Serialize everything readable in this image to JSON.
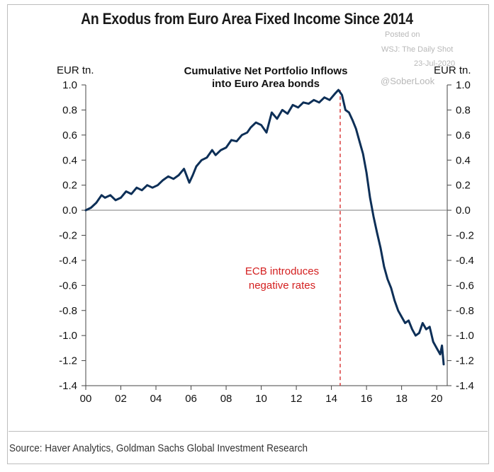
{
  "title": "An Exodus from Euro Area Fixed Income Since 2014",
  "source": "Source: Haver Analytics, Goldman Sachs Global Investment Research",
  "watermark": {
    "posted_on": "Posted on",
    "outlet": "WSJ: The Daily Shot",
    "date": "23-Jul-2020",
    "handle": "@SoberLook"
  },
  "colors": {
    "series": "#0d2f57",
    "annotation": "#d42020",
    "zero_line": "#8c8c8c",
    "axis": "#444444"
  },
  "chart_data": {
    "type": "line",
    "title": "Cumulative Net Portfolio Inflows into Euro Area bonds",
    "title_lines": [
      "Cumulative Net Portfolio Inflows",
      "into Euro Area bonds"
    ],
    "ylabel_left": "EUR tn.",
    "ylabel_right": "EUR tn.",
    "xlim": [
      2000,
      2020.6
    ],
    "ylim": [
      -1.4,
      1.0
    ],
    "xticks": [
      2000,
      2002,
      2004,
      2006,
      2008,
      2010,
      2012,
      2014,
      2016,
      2018,
      2020
    ],
    "xtick_labels": [
      "00",
      "02",
      "04",
      "06",
      "08",
      "10",
      "12",
      "14",
      "16",
      "18",
      "20"
    ],
    "yticks": [
      1.0,
      0.8,
      0.6,
      0.4,
      0.2,
      0.0,
      -0.2,
      -0.4,
      -0.6,
      -0.8,
      -1.0,
      -1.2,
      -1.4
    ],
    "ytick_labels": [
      "1.0",
      "0.8",
      "0.6",
      "0.4",
      "0.2",
      "0.0",
      "-0.2",
      "-0.4",
      "-0.6",
      "-0.8",
      "-1.0",
      "-1.2",
      "-1.4"
    ],
    "grid": false,
    "vline": {
      "x": 2014.5,
      "style": "dashed"
    },
    "annotation_lines": [
      "ECB introduces",
      "negative rates"
    ],
    "series": [
      {
        "name": "",
        "x": [
          2000.0,
          2000.3,
          2000.6,
          2000.9,
          2001.1,
          2001.4,
          2001.7,
          2002.0,
          2002.3,
          2002.6,
          2002.9,
          2003.2,
          2003.5,
          2003.8,
          2004.1,
          2004.4,
          2004.7,
          2005.0,
          2005.3,
          2005.6,
          2005.9,
          2006.1,
          2006.3,
          2006.6,
          2006.9,
          2007.2,
          2007.4,
          2007.7,
          2008.0,
          2008.3,
          2008.6,
          2008.9,
          2009.2,
          2009.4,
          2009.7,
          2010.0,
          2010.3,
          2010.6,
          2010.9,
          2011.2,
          2011.5,
          2011.8,
          2012.1,
          2012.4,
          2012.7,
          2013.0,
          2013.3,
          2013.6,
          2013.9,
          2014.2,
          2014.4,
          2014.6,
          2014.8,
          2015.0,
          2015.2,
          2015.4,
          2015.6,
          2015.8,
          2016.0,
          2016.2,
          2016.4,
          2016.6,
          2016.8,
          2017.0,
          2017.2,
          2017.4,
          2017.6,
          2017.8,
          2018.0,
          2018.2,
          2018.4,
          2018.6,
          2018.8,
          2019.0,
          2019.2,
          2019.4,
          2019.6,
          2019.8,
          2020.0,
          2020.2,
          2020.3,
          2020.4
        ],
        "values": [
          0.0,
          0.02,
          0.06,
          0.12,
          0.1,
          0.12,
          0.08,
          0.1,
          0.15,
          0.13,
          0.18,
          0.16,
          0.2,
          0.18,
          0.2,
          0.24,
          0.27,
          0.25,
          0.28,
          0.33,
          0.22,
          0.28,
          0.35,
          0.4,
          0.42,
          0.48,
          0.44,
          0.48,
          0.5,
          0.56,
          0.55,
          0.6,
          0.62,
          0.66,
          0.7,
          0.68,
          0.62,
          0.78,
          0.73,
          0.8,
          0.77,
          0.84,
          0.82,
          0.86,
          0.85,
          0.88,
          0.86,
          0.9,
          0.88,
          0.93,
          0.96,
          0.92,
          0.8,
          0.78,
          0.72,
          0.65,
          0.55,
          0.45,
          0.3,
          0.1,
          -0.05,
          -0.18,
          -0.3,
          -0.45,
          -0.55,
          -0.62,
          -0.72,
          -0.8,
          -0.85,
          -0.9,
          -0.88,
          -0.95,
          -1.0,
          -0.98,
          -0.9,
          -0.95,
          -0.93,
          -1.05,
          -1.1,
          -1.15,
          -1.08,
          -1.23
        ]
      }
    ]
  }
}
